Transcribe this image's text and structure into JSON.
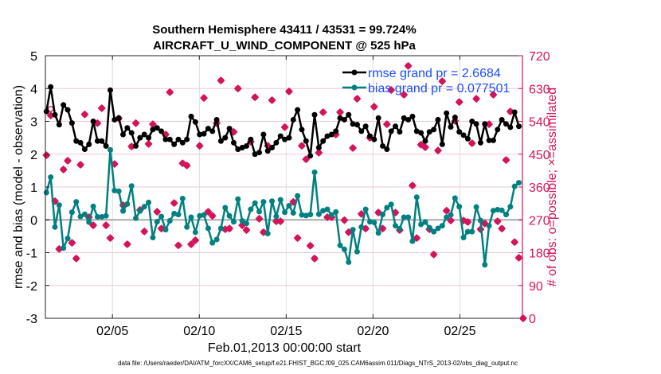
{
  "chart_data": {
    "type": "line",
    "title": [
      "Southern Hemisphere 43411 / 43531 = 99.724%",
      "AIRCRAFT_U_WIND_COMPONENT @ 525 hPa"
    ],
    "xlabel": "Feb.01,2013 00:00:00 start",
    "ylabel": "rmse and bias (model - observation)",
    "ylabel_right": "# of obs: o=possible; ×=assimilated",
    "footnote": "data file: /Users/raeder/DAI/ATM_forcXX/CAM6_setup/f.e21.FHIST_BGC.f09_025.CAM6assim.011/Diags_NTrS_2013-02/obs_diag_output.nc",
    "x_units": "day of February 2013",
    "xlim": [
      1.14,
      28.6
    ],
    "x_start": 1.2,
    "x_step": 0.245,
    "xticks": [
      5,
      10,
      15,
      20,
      25
    ],
    "xtick_labels": [
      "02/05",
      "02/10",
      "02/15",
      "02/20",
      "02/25"
    ],
    "ylim": [
      -3,
      5
    ],
    "yticks": [
      "-3",
      "-2",
      "-1",
      "0",
      "1",
      "2",
      "3",
      "4",
      "5"
    ],
    "ylim_right": [
      0,
      720
    ],
    "yticks_right": [
      "0",
      "90",
      "180",
      "270",
      "360",
      "450",
      "540",
      "630",
      "720"
    ],
    "grid": true,
    "legend_position": "top-right",
    "colors": {
      "rmse": "#000000",
      "bias": "#008080",
      "obs": "#d4145a",
      "legend_text": "#1a4dff",
      "zero": "#b0b0b0"
    },
    "series": [
      {
        "name": "rmse grand pr = 2.6684",
        "axis": "left",
        "values": [
          3.3,
          4.05,
          3.2,
          2.9,
          3.5,
          3.35,
          2.95,
          2.4,
          2.35,
          2.15,
          2.3,
          3.0,
          2.4,
          2.4,
          2.25,
          3.95,
          3.05,
          3.1,
          2.6,
          2.8,
          2.65,
          2.25,
          2.5,
          2.6,
          2.5,
          2.75,
          2.8,
          2.7,
          2.45,
          2.45,
          2.3,
          2.45,
          2.35,
          2.45,
          3.15,
          2.98,
          2.6,
          2.62,
          2.78,
          2.7,
          3.05,
          2.4,
          2.5,
          2.78,
          2.35,
          2.15,
          2.2,
          2.25,
          2.45,
          2.0,
          2.05,
          2.6,
          2.1,
          2.2,
          2.35,
          2.55,
          2.45,
          2.5,
          3.05,
          3.35,
          2.75,
          2.4,
          1.95,
          3.2,
          2.2,
          2.4,
          2.55,
          2.6,
          2.7,
          3.1,
          3.05,
          3.2,
          2.92,
          2.9,
          2.7,
          2.85,
          2.55,
          2.45,
          3.1,
          2.25,
          2.15,
          2.7,
          2.85,
          2.68,
          3.1,
          3.05,
          3.15,
          2.7,
          2.65,
          2.4,
          2.68,
          2.75,
          3.05,
          2.3,
          3.25,
          2.83,
          3.12,
          2.68,
          2.58,
          2.47,
          3.0,
          2.92,
          2.35,
          2.92,
          2.42,
          2.42,
          2.75,
          3.05,
          2.92,
          2.82,
          3.28,
          2.85
        ]
      },
      {
        "name": "bias grand pr = 0.077501",
        "axis": "left",
        "values": [
          0.83,
          1.3,
          -0.22,
          0.45,
          -0.86,
          -0.57,
          0.23,
          0.55,
          0.1,
          0.17,
          -0.07,
          0.41,
          0.09,
          0.09,
          0.12,
          2.13,
          0.89,
          0.87,
          0.27,
          0.48,
          1.03,
          0.05,
          0.27,
          0.4,
          0.53,
          -0.54,
          -0.06,
          0.1,
          -0.3,
          -0.03,
          0.19,
          0.16,
          0.65,
          -0.22,
          0.08,
          -0.38,
          0.12,
          0.15,
          -0.26,
          -0.7,
          -0.6,
          -0.26,
          0.37,
          0.12,
          -0.06,
          0.63,
          -0.03,
          -0.11,
          0.32,
          0.51,
          0.25,
          0.55,
          -0.42,
          0.57,
          0.1,
          0.61,
          0.23,
          0.43,
          0.21,
          0.73,
          0.15,
          0.13,
          0.16,
          1.45,
          0.17,
          0.28,
          0.32,
          0.15,
          0.24,
          -0.78,
          -0.9,
          -1.29,
          -0.3,
          -0.97,
          -0.22,
          0.32,
          -0.06,
          -0.08,
          -0.4,
          0.16,
          0.37,
          0.47,
          -0.18,
          -0.27,
          0.08,
          0.08,
          -0.65,
          0.69,
          -0.14,
          -0.07,
          -0.24,
          -0.36,
          -0.26,
          -0.18,
          0.08,
          0.15,
          0.66,
          0.4,
          -0.54,
          -0.36,
          -0.36,
          0.39,
          -0.02,
          -1.37,
          -0.18,
          0.28,
          0.31,
          0.29,
          0.16,
          0.4,
          1.02,
          1.13
        ]
      },
      {
        "name": "obs assimilated",
        "axis": "right",
        "values": [
          447,
          556,
          321,
          190,
          408,
          432,
          207,
          164,
          421,
          559,
          277,
          255,
          535,
          576,
          255,
          220,
          423,
          548,
          310,
          203,
          471,
          535,
          297,
          238,
          478,
          532,
          292,
          246,
          504,
          620,
          316,
          200,
          425,
          419,
          203,
          214,
          473,
          604,
          292,
          281,
          535,
          652,
          244,
          246,
          511,
          630,
          255,
          242,
          484,
          606,
          273,
          236,
          473,
          598,
          266,
          266,
          524,
          622,
          319,
          220,
          473,
          436,
          199,
          164,
          454,
          565,
          277,
          277,
          504,
          565,
          269,
          236,
          467,
          602,
          286,
          246,
          495,
          580,
          290,
          246,
          532,
          626,
          290,
          242,
          613,
          692,
          364,
          220,
          476,
          469,
          244,
          175,
          460,
          650,
          295,
          268,
          541,
          593,
          268,
          264,
          480,
          602,
          244,
          260,
          532,
          613,
          266,
          246,
          434,
          567,
          209,
          166,
          0
        ]
      },
      {
        "name": "obs possible",
        "axis": "right",
        "values": [
          447,
          574,
          321,
          190,
          408,
          432,
          207,
          164,
          421,
          559,
          277,
          255,
          535,
          576,
          255,
          220,
          423,
          548,
          310,
          203,
          471,
          535,
          297,
          238,
          478,
          532,
          292,
          246,
          504,
          620,
          316,
          200,
          425,
          419,
          203,
          214,
          473,
          604,
          292,
          281,
          535,
          652,
          244,
          246,
          511,
          630,
          255,
          242,
          484,
          606,
          273,
          236,
          473,
          598,
          266,
          266,
          524,
          622,
          319,
          220,
          473,
          436,
          199,
          164,
          454,
          565,
          277,
          277,
          504,
          565,
          269,
          236,
          467,
          602,
          286,
          246,
          495,
          580,
          290,
          246,
          532,
          626,
          290,
          242,
          613,
          692,
          364,
          220,
          476,
          469,
          244,
          175,
          460,
          650,
          295,
          268,
          541,
          593,
          268,
          264,
          480,
          602,
          244,
          260,
          532,
          613,
          266,
          246,
          434,
          567,
          209,
          166,
          0
        ]
      }
    ]
  }
}
